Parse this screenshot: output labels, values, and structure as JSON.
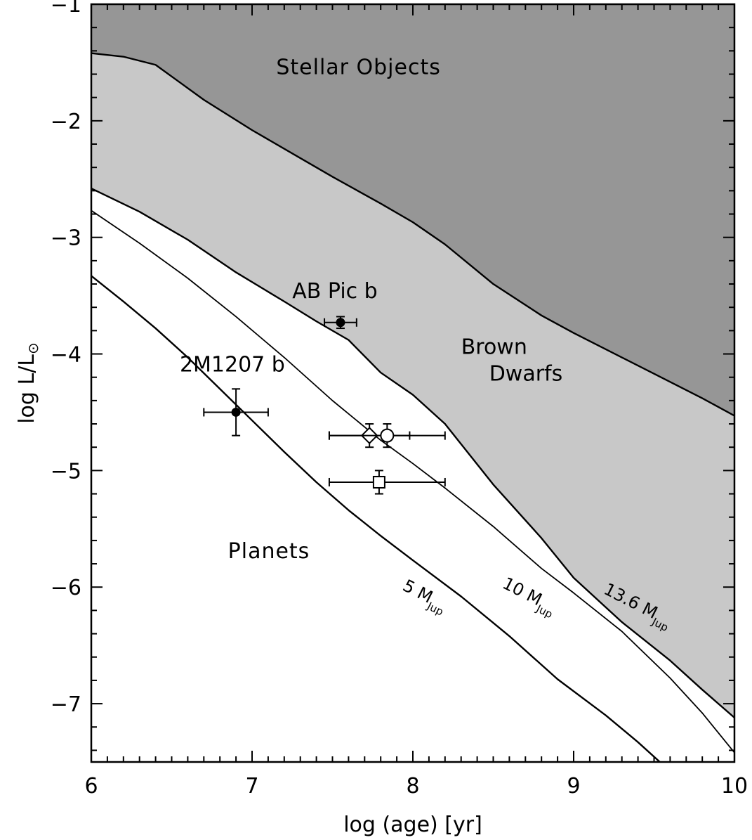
{
  "chart_data": {
    "type": "line",
    "title": "",
    "xlabel": "log (age) [yr]",
    "ylabel": "log L/L",
    "ylabel_symbol": "⊙",
    "xlim": [
      6,
      10
    ],
    "ylim": [
      -7.5,
      -1
    ],
    "x_ticks": [
      6,
      7,
      8,
      9,
      10
    ],
    "y_ticks": [
      -7,
      -6,
      -5,
      -4,
      -3,
      -2,
      -1
    ],
    "x_tick_labels": [
      "6",
      "7",
      "8",
      "9",
      "10"
    ],
    "y_tick_labels": [
      "−7",
      "−6",
      "−5",
      "−4",
      "−3",
      "−2",
      "−1"
    ],
    "grid": false,
    "colors": {
      "stellar_fill": "#969696",
      "brown_dwarf_fill": "#c8c8c8",
      "planet_fill": "#ffffff",
      "line": "#000000"
    },
    "regions": [
      {
        "label": "Stellar Objects",
        "x": 7.15,
        "y": -1.6
      },
      {
        "label_lines": [
          "Brown",
          "Dwarfs"
        ],
        "x": 8.3,
        "y": -4.0
      },
      {
        "label": "Planets",
        "x": 6.85,
        "y": -5.75
      }
    ],
    "series": [
      {
        "label": "stellar-limit",
        "x": [
          6.0,
          6.2,
          6.4,
          6.5,
          6.7,
          7.0,
          7.3,
          7.5,
          7.8,
          8.0,
          8.2,
          8.5,
          8.8,
          9.0,
          9.3,
          9.5,
          9.8,
          10.0
        ],
        "y": [
          -1.42,
          -1.45,
          -1.52,
          -1.62,
          -1.82,
          -2.08,
          -2.32,
          -2.48,
          -2.71,
          -2.87,
          -3.06,
          -3.4,
          -3.67,
          -3.82,
          -4.03,
          -4.17,
          -4.38,
          -4.53
        ]
      },
      {
        "label": "13.6 M",
        "subscript": "Jup",
        "label_pos": {
          "x": 9.18,
          "y": -6.05,
          "angle": 27
        },
        "x": [
          6.0,
          6.3,
          6.6,
          6.9,
          7.2,
          7.4,
          7.6,
          7.8,
          8.0,
          8.2,
          8.5,
          8.8,
          9.0,
          9.3,
          9.6,
          9.8,
          10.0
        ],
        "y": [
          -2.58,
          -2.78,
          -3.02,
          -3.3,
          -3.55,
          -3.72,
          -3.88,
          -4.16,
          -4.35,
          -4.6,
          -5.12,
          -5.58,
          -5.92,
          -6.3,
          -6.63,
          -6.88,
          -7.12
        ]
      },
      {
        "label": "10 M",
        "subscript": "Jup",
        "label_pos": {
          "x": 8.55,
          "y": -6.0,
          "angle": 27
        },
        "x": [
          6.0,
          6.3,
          6.6,
          6.9,
          7.2,
          7.5,
          7.8,
          8.0,
          8.2,
          8.5,
          8.8,
          9.0,
          9.3,
          9.6,
          9.8,
          10.0
        ],
        "y": [
          -2.77,
          -3.05,
          -3.35,
          -3.68,
          -4.03,
          -4.4,
          -4.74,
          -4.94,
          -5.15,
          -5.48,
          -5.84,
          -6.05,
          -6.38,
          -6.78,
          -7.08,
          -7.42
        ]
      },
      {
        "label": "5 M",
        "subscript": "Jup",
        "label_pos": {
          "x": 7.93,
          "y": -6.02,
          "angle": 27
        },
        "x": [
          6.0,
          6.2,
          6.4,
          6.6,
          6.8,
          7.0,
          7.2,
          7.4,
          7.6,
          7.8,
          8.0,
          8.3,
          8.6,
          8.9,
          9.2,
          9.4,
          9.6
        ],
        "y": [
          -3.33,
          -3.55,
          -3.78,
          -4.03,
          -4.3,
          -4.57,
          -4.84,
          -5.1,
          -5.34,
          -5.56,
          -5.77,
          -6.08,
          -6.42,
          -6.79,
          -7.1,
          -7.33,
          -7.58
        ]
      }
    ],
    "points": [
      {
        "label": "2M1207 b",
        "marker": "filled-circle",
        "x": 6.9,
        "y": -4.5,
        "xerr": [
          0.2,
          0.2
        ],
        "yerr": [
          0.2,
          0.2
        ],
        "label_pos": {
          "x": 6.55,
          "y": -4.15
        }
      },
      {
        "label": "AB Pic b",
        "marker": "filled-circle",
        "x": 7.55,
        "y": -3.73,
        "xerr": [
          0.1,
          0.1
        ],
        "yerr": [
          0.05,
          0.05
        ],
        "label_pos": {
          "x": 7.25,
          "y": -3.52
        }
      },
      {
        "label": "",
        "marker": "open-diamond",
        "x": 7.73,
        "y": -4.7,
        "xerr": [
          0.25,
          0.25
        ],
        "yerr": [
          0.1,
          0.1
        ]
      },
      {
        "label": "",
        "marker": "open-circle",
        "x": 7.84,
        "y": -4.7,
        "xerr": [
          0.36,
          0.36
        ],
        "yerr": [
          0.1,
          0.1
        ]
      },
      {
        "label": "",
        "marker": "open-square",
        "x": 7.79,
        "y": -5.1,
        "xerr": [
          0.31,
          0.41
        ],
        "yerr": [
          0.1,
          0.1
        ]
      }
    ]
  }
}
